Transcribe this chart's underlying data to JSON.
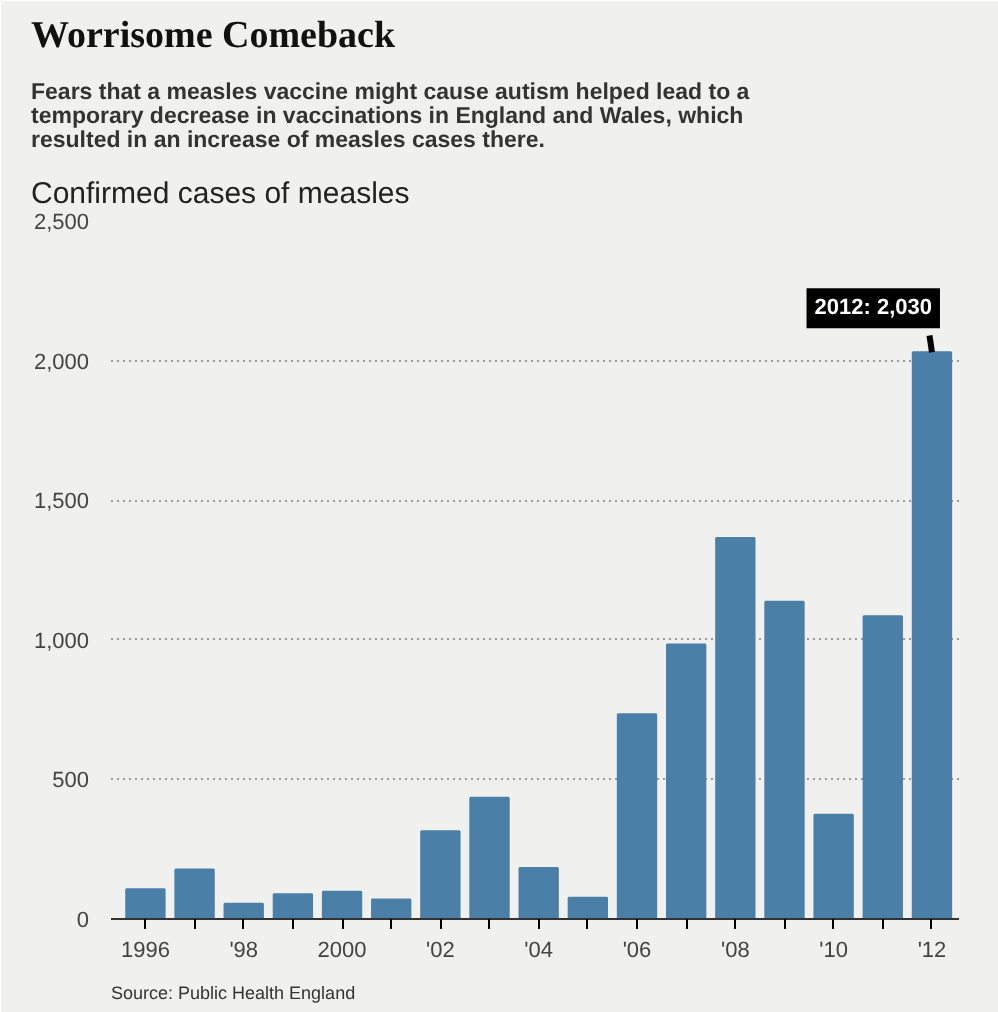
{
  "chart_data": {
    "type": "bar",
    "title": "Worrisome Comeback",
    "subtitle": "Fears that a measles vaccine might cause autism helped lead to a temporary decrease in vaccinations in England and Wales, which resulted in an increase of measles cases there.",
    "ylabel": "Confirmed cases of measles",
    "categories": [
      "1996",
      null,
      "'98",
      null,
      "2000",
      null,
      "'02",
      null,
      "'04",
      null,
      "'06",
      null,
      "'08",
      null,
      "'10",
      null,
      "'12"
    ],
    "values": [
      107,
      177,
      55,
      89,
      98,
      70,
      314,
      434,
      183,
      76,
      733,
      983,
      1365,
      1136,
      373,
      1084,
      2030
    ],
    "color": "#4a7fa8",
    "ylim": [
      0,
      2500
    ],
    "yticks": [
      0,
      500,
      {
        "value": 1000,
        "label": "1,000"
      },
      {
        "value": 1500,
        "label": "1,500"
      },
      {
        "value": 2000,
        "label": "2,000"
      },
      {
        "value": 2500,
        "label": "2,500"
      }
    ],
    "grid": "y",
    "annotations": [
      {
        "text": "2012: 2,030",
        "x": "'12",
        "y": 2030
      },
      "Source: Public Health England"
    ]
  }
}
